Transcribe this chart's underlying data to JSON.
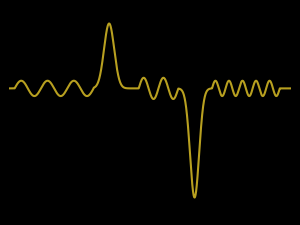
{
  "line_color": "#b8a020",
  "line_width": 1.5,
  "background_color": "#000000",
  "figsize": [
    3.0,
    2.26
  ],
  "dpi": 100,
  "xlim": [
    0,
    1
  ],
  "ylim": [
    -2.2,
    1.4
  ]
}
